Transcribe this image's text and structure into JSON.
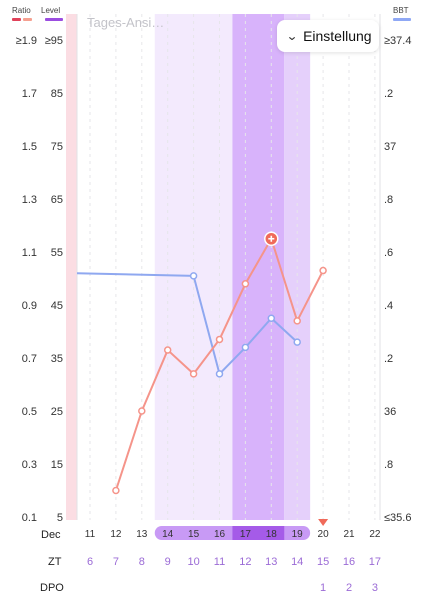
{
  "legend": {
    "ratio_label": "Ratio",
    "level_label": "Level",
    "bbt_label": "BBT",
    "ratio_colors": [
      "#e0425a",
      "#f5a090"
    ],
    "level_color": "#9b4de0",
    "bbt_color": "#8fa8f5"
  },
  "day_view_label": "Tages-Ansi…",
  "settings": {
    "label": "Einstellung",
    "icon": "chevron-down-icon"
  },
  "row_labels": {
    "dec": "Dec",
    "zt": "ZT",
    "dpo": "DPO"
  },
  "colors": {
    "ratio_line": "#f5948a",
    "bbt_line": "#8fa8f0",
    "marker": "#f06a5a",
    "fertile_light": "#f3eafd",
    "fertile_mid": "#e5d0fb",
    "fertile_peak": "#d8b3fb",
    "period": "#fbdde3",
    "pill_light": "#c89af5",
    "pill_dark": "#a55be8",
    "zt_text": "#9b6bd6",
    "dpo_text": "#9b6bd6",
    "today_marker": "#f06a5a"
  },
  "chart_data": {
    "type": "line",
    "days": [
      "11",
      "12",
      "13",
      "14",
      "15",
      "16",
      "17",
      "18",
      "19",
      "20",
      "21",
      "22"
    ],
    "zt": [
      "6",
      "7",
      "8",
      "9",
      "10",
      "11",
      "12",
      "13",
      "14",
      "15",
      "16",
      "17"
    ],
    "dpo": [
      "",
      "",
      "",
      "",
      "",
      "",
      "",
      "",
      "",
      "1",
      "2",
      "3"
    ],
    "pill_days": [
      "14",
      "15",
      "16",
      "17",
      "18",
      "19"
    ],
    "peak_days": [
      "17",
      "18"
    ],
    "fertile_light_days": [
      "14",
      "15",
      "16"
    ],
    "fertile_mid_days": [
      "19"
    ],
    "today": "20",
    "period_day": "10",
    "y_left_ratio_ticks": [
      "≥1.9",
      "1.7",
      "1.5",
      "1.3",
      "1.1",
      "0.9",
      "0.7",
      "0.5",
      "0.3",
      "0.1"
    ],
    "y_left_level_ticks": [
      "≥95",
      "85",
      "75",
      "65",
      "55",
      "45",
      "35",
      "25",
      "15",
      "5"
    ],
    "y_right_bbt_ticks": [
      "≥37.4",
      ".2",
      "37",
      ".8",
      ".6",
      ".4",
      ".2",
      "36",
      ".8",
      "≤35.6"
    ],
    "ratio_range": [
      0.1,
      1.9
    ],
    "series": [
      {
        "name": "Ratio",
        "x": [
          "12",
          "13",
          "14",
          "15",
          "16",
          "17",
          "18",
          "19",
          "20"
        ],
        "values": [
          0.2,
          0.5,
          0.73,
          0.64,
          0.77,
          0.98,
          1.15,
          0.84,
          1.03
        ],
        "peak_marker_day": "18"
      },
      {
        "name": "BBT",
        "x": [
          "10",
          "15",
          "16",
          "17",
          "18",
          "19"
        ],
        "values": [
          36.52,
          36.51,
          36.14,
          36.24,
          36.35,
          36.26
        ]
      }
    ]
  }
}
